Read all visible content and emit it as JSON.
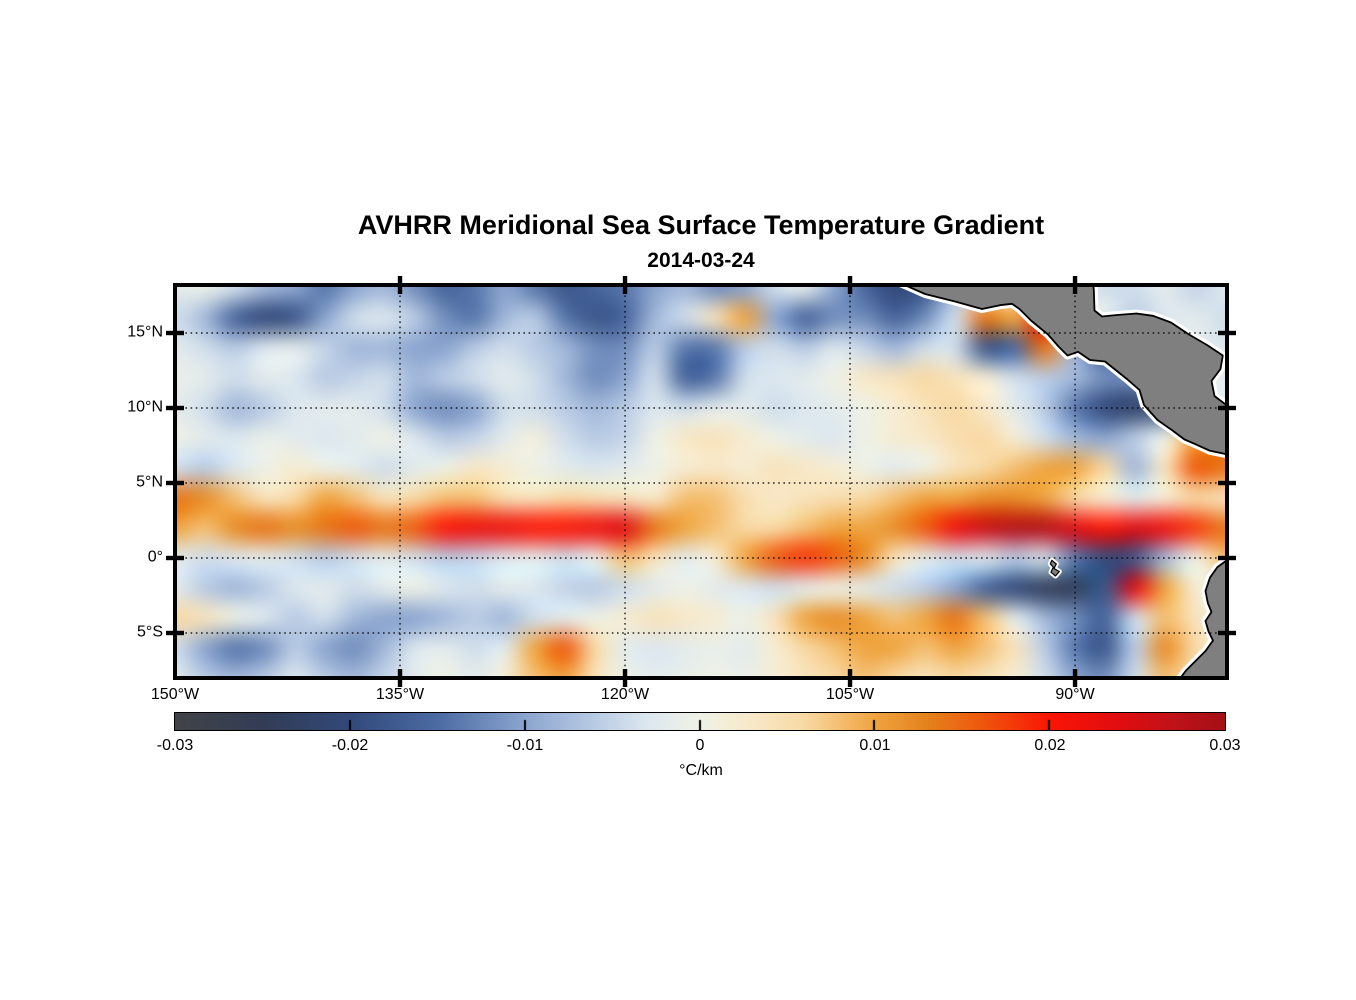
{
  "figure": {
    "title": "AVHRR Meridional Sea Surface Temperature Gradient",
    "subtitle": "2014-03-24"
  },
  "map": {
    "lon_range_deg_west": [
      150,
      79.87
    ],
    "lat_range_deg_north": [
      18.2,
      -8.0
    ],
    "x_ticks": [
      {
        "label": "150°W",
        "lon": 150
      },
      {
        "label": "135°W",
        "lon": 135
      },
      {
        "label": "120°W",
        "lon": 120
      },
      {
        "label": "105°W",
        "lon": 105
      },
      {
        "label": "90°W",
        "lon": 90
      }
    ],
    "y_ticks": [
      {
        "label": "15°N",
        "lat": 15
      },
      {
        "label": "10°N",
        "lat": 10
      },
      {
        "label": "5°N",
        "lat": 5
      },
      {
        "label": "0°",
        "lat": 0
      },
      {
        "label": "5°S",
        "lat": -5
      }
    ],
    "gridline_lons": [
      135,
      120,
      105,
      90
    ],
    "gridline_lats": [
      15,
      10,
      5,
      0,
      -5
    ],
    "grid_color": "#000000",
    "frame_color": "#000000",
    "land_color": "#7f7f7f",
    "coast_color": "#000000",
    "nodata_fringe_color": "#ffffff",
    "land": [
      {
        "name": "mexico-central-america",
        "points": [
          [
            101.7,
            18.35
          ],
          [
            100.0,
            17.6
          ],
          [
            98.0,
            17.1
          ],
          [
            96.2,
            16.6
          ],
          [
            95.0,
            16.85
          ],
          [
            94.2,
            16.95
          ],
          [
            93.7,
            16.6
          ],
          [
            92.9,
            15.8
          ],
          [
            91.8,
            14.9
          ],
          [
            91.1,
            14.1
          ],
          [
            90.5,
            13.5
          ],
          [
            89.8,
            13.75
          ],
          [
            89.0,
            13.2
          ],
          [
            88.0,
            13.1
          ],
          [
            86.5,
            11.9
          ],
          [
            85.7,
            11.2
          ],
          [
            85.4,
            10.2
          ],
          [
            84.5,
            9.2
          ],
          [
            83.5,
            8.5
          ],
          [
            82.7,
            7.9
          ],
          [
            82.0,
            7.6
          ],
          [
            81.0,
            7.15
          ],
          [
            79.8,
            6.9
          ],
          [
            79.8,
            10.1
          ],
          [
            80.7,
            10.8
          ],
          [
            80.9,
            11.8
          ],
          [
            80.3,
            12.6
          ],
          [
            80.15,
            13.5
          ],
          [
            81.2,
            14.2
          ],
          [
            82.4,
            14.9
          ],
          [
            83.6,
            15.7
          ],
          [
            84.8,
            16.15
          ],
          [
            85.9,
            16.3
          ],
          [
            87.2,
            16.2
          ],
          [
            88.2,
            16.1
          ],
          [
            88.7,
            16.5
          ],
          [
            88.75,
            17.9
          ],
          [
            88.8,
            18.35
          ]
        ]
      },
      {
        "name": "south-america",
        "points": [
          [
            79.8,
            -0.1
          ],
          [
            80.5,
            -0.6
          ],
          [
            81.0,
            -1.3
          ],
          [
            81.3,
            -2.2
          ],
          [
            81.15,
            -3.0
          ],
          [
            80.9,
            -3.6
          ],
          [
            81.3,
            -4.2
          ],
          [
            81.1,
            -4.9
          ],
          [
            80.8,
            -5.5
          ],
          [
            81.3,
            -6.2
          ],
          [
            82.0,
            -6.9
          ],
          [
            82.6,
            -7.5
          ],
          [
            83.2,
            -8.3
          ],
          [
            79.8,
            -8.3
          ]
        ]
      },
      {
        "name": "galapagos-islands",
        "points": [
          [
            91.55,
            -0.15
          ],
          [
            91.25,
            -0.4
          ],
          [
            91.4,
            -0.7
          ],
          [
            91.05,
            -0.9
          ],
          [
            91.3,
            -1.2
          ],
          [
            91.6,
            -0.95
          ],
          [
            91.45,
            -0.6
          ],
          [
            91.65,
            -0.4
          ]
        ]
      }
    ]
  },
  "colorbar": {
    "min": -0.03,
    "max": 0.03,
    "unit": "°C/km",
    "tick_labels": [
      "-0.03",
      "-0.02",
      "-0.01",
      "0",
      "0.01",
      "0.02",
      "0.03"
    ],
    "tick_values": [
      -0.03,
      -0.02,
      -0.01,
      0,
      0.01,
      0.02,
      0.03
    ],
    "inner_tick_values": [
      -0.02,
      -0.01,
      0,
      0.01,
      0.02
    ],
    "stops": [
      [
        -30,
        "#404347"
      ],
      [
        -25,
        "#323c55"
      ],
      [
        -20,
        "#32497a"
      ],
      [
        -15,
        "#4c6ba3"
      ],
      [
        -10,
        "#8ba5cf"
      ],
      [
        -6,
        "#b9cbe4"
      ],
      [
        -3,
        "#dce7ef"
      ],
      [
        -1,
        "#e9efe9"
      ],
      [
        0,
        "#eef1e6"
      ],
      [
        1,
        "#f3efdd"
      ],
      [
        3,
        "#f8e8c8"
      ],
      [
        6,
        "#f8d9a4"
      ],
      [
        10,
        "#efa440"
      ],
      [
        13,
        "#e4821c"
      ],
      [
        16,
        "#ee5a0d"
      ],
      [
        20,
        "#fb1505"
      ],
      [
        24,
        "#e00d10"
      ],
      [
        27,
        "#c11218"
      ],
      [
        30,
        "#a31016"
      ]
    ]
  },
  "chart_data": {
    "type": "heatmap",
    "title": "AVHRR Meridional Sea Surface Temperature Gradient",
    "subtitle": "2014-03-24",
    "units": "°C/km",
    "value_scale": 0.001,
    "value_range": [
      -0.03,
      0.03
    ],
    "lons_deg_west": [
      150,
      148,
      146,
      144,
      142,
      140,
      138,
      136,
      134,
      132,
      130,
      128,
      126,
      124,
      122,
      120,
      118,
      116,
      114,
      112,
      110,
      108,
      106,
      104,
      102,
      100,
      98,
      96,
      94,
      92,
      90,
      88,
      86,
      84,
      82,
      80
    ],
    "lats_deg_north": [
      18,
      16,
      14,
      12,
      10,
      8,
      6,
      4,
      2,
      0,
      -2,
      -4,
      -6,
      -8
    ],
    "values_milli_degC_per_km": [
      [
        -2,
        -1,
        -4,
        -8,
        -10,
        -14,
        -10,
        -8,
        -12,
        -16,
        -14,
        -10,
        -14,
        -18,
        -16,
        -14,
        -10,
        -8,
        -12,
        -10,
        -4,
        -2,
        -10,
        -16,
        -20,
        -18,
        -8,
        0,
        0,
        0,
        -2,
        -4,
        -4,
        -2,
        -5,
        -3
      ],
      [
        -4,
        -8,
        -16,
        -20,
        -18,
        -10,
        -4,
        -3,
        -6,
        -12,
        -14,
        -8,
        -6,
        -14,
        -18,
        -16,
        -8,
        -4,
        4,
        10,
        -10,
        -16,
        -12,
        -12,
        -16,
        -12,
        -4,
        14,
        10,
        20,
        4,
        -2,
        -6,
        -3,
        -2,
        -4
      ],
      [
        -2,
        -4,
        -6,
        -3,
        -2,
        -5,
        -8,
        -8,
        -10,
        -10,
        -6,
        -4,
        -6,
        -8,
        -12,
        -12,
        -6,
        -14,
        -14,
        -6,
        -4,
        -6,
        -3,
        -5,
        -8,
        -4,
        -4,
        -18,
        -16,
        14,
        -8,
        -18,
        -10,
        -4,
        -2,
        -3
      ],
      [
        -1,
        -2,
        -4,
        -2,
        -3,
        -6,
        -5,
        -4,
        -8,
        -6,
        -4,
        -2,
        -4,
        -8,
        -12,
        -10,
        -4,
        -16,
        -14,
        -4,
        -3,
        -2,
        0,
        3,
        4,
        6,
        4,
        2,
        -4,
        -6,
        -8,
        -12,
        -12,
        -8,
        0,
        -2
      ],
      [
        -2,
        -4,
        -8,
        -6,
        -3,
        -2,
        -2,
        -4,
        -10,
        -12,
        -10,
        -4,
        -4,
        -6,
        -8,
        -6,
        -3,
        -4,
        -2,
        -2,
        -4,
        -3,
        -2,
        0,
        2,
        4,
        6,
        3,
        -2,
        -6,
        -14,
        -20,
        -22,
        -18,
        -6,
        -2
      ],
      [
        0,
        -2,
        -3,
        -1,
        -2,
        -3,
        -2,
        0,
        -3,
        -6,
        -5,
        -2,
        1,
        -4,
        -6,
        -5,
        0,
        3,
        4,
        2,
        0,
        -2,
        -3,
        0,
        2,
        3,
        5,
        6,
        2,
        -4,
        -8,
        -10,
        -6,
        0,
        10,
        12
      ],
      [
        -4,
        -6,
        -3,
        0,
        2,
        0,
        -2,
        -4,
        -2,
        0,
        3,
        2,
        0,
        -2,
        -3,
        -2,
        0,
        2,
        3,
        2,
        4,
        3,
        2,
        0,
        -2,
        0,
        4,
        6,
        8,
        10,
        10,
        6,
        -8,
        4,
        16,
        14
      ],
      [
        14,
        12,
        8,
        4,
        6,
        10,
        8,
        4,
        6,
        8,
        8,
        5,
        4,
        6,
        5,
        4,
        3,
        8,
        8,
        5,
        3,
        4,
        5,
        6,
        8,
        10,
        10,
        12,
        12,
        10,
        6,
        2,
        -2,
        2,
        6,
        4
      ],
      [
        10,
        8,
        12,
        14,
        12,
        14,
        16,
        14,
        16,
        20,
        22,
        22,
        20,
        20,
        22,
        24,
        14,
        10,
        8,
        6,
        6,
        8,
        10,
        10,
        12,
        16,
        22,
        26,
        28,
        28,
        24,
        20,
        24,
        22,
        18,
        14
      ],
      [
        -2,
        -4,
        -3,
        -2,
        -4,
        -6,
        -4,
        -2,
        -4,
        -6,
        -5,
        -3,
        -2,
        -4,
        -1,
        8,
        4,
        -2,
        2,
        10,
        16,
        18,
        16,
        12,
        4,
        -2,
        -4,
        -3,
        -6,
        -4,
        -14,
        -20,
        -18,
        -8,
        0,
        8
      ],
      [
        -2,
        -6,
        -8,
        -6,
        -3,
        -2,
        -4,
        -2,
        0,
        -3,
        -4,
        -2,
        -3,
        -5,
        -6,
        -4,
        -2,
        0,
        -2,
        -3,
        -4,
        -2,
        0,
        -2,
        -4,
        -6,
        -10,
        -16,
        -20,
        -24,
        -24,
        -18,
        24,
        10,
        2,
        -2
      ],
      [
        6,
        4,
        0,
        -3,
        -6,
        -4,
        -8,
        -10,
        -10,
        -8,
        -6,
        -8,
        -4,
        -2,
        0,
        2,
        4,
        3,
        2,
        0,
        4,
        10,
        12,
        10,
        8,
        10,
        14,
        8,
        -2,
        -8,
        -12,
        -16,
        -4,
        8,
        4,
        0
      ],
      [
        -4,
        -10,
        -14,
        -12,
        -6,
        -10,
        -12,
        -8,
        -3,
        -2,
        -4,
        -2,
        10,
        16,
        6,
        -2,
        -3,
        -2,
        -1,
        -2,
        2,
        6,
        8,
        10,
        10,
        8,
        10,
        8,
        4,
        -6,
        -14,
        -18,
        -6,
        12,
        6,
        0
      ],
      [
        -2,
        -6,
        -8,
        -6,
        -3,
        -6,
        -8,
        -5,
        -2,
        0,
        -2,
        2,
        8,
        10,
        4,
        0,
        -2,
        -1,
        0,
        -1,
        2,
        4,
        6,
        8,
        6,
        4,
        6,
        4,
        2,
        -4,
        -10,
        -12,
        -4,
        8,
        4,
        -2
      ]
    ]
  }
}
